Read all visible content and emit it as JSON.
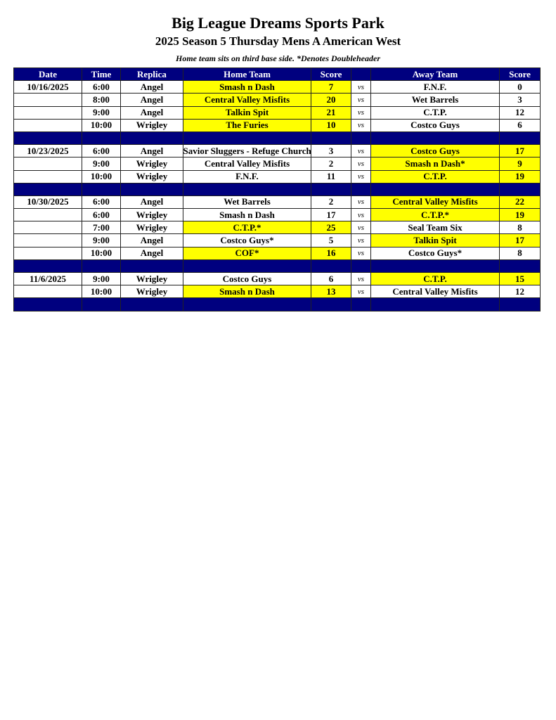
{
  "title": "Big League Dreams Sports Park",
  "subtitle": "2025 Season 5 Thursday Mens A American West",
  "note": "Home team sits on third base side.  *Denotes Doubleheader",
  "colors": {
    "header_bg": "#00007f",
    "winner_highlight": "#ffff00"
  },
  "headers": [
    "Date",
    "Time",
    "Replica",
    "Home Team",
    "Score",
    "",
    "Away Team",
    "Score"
  ],
  "vs_label": "vs",
  "rows": [
    {
      "date": "10/16/2025",
      "time": "6:00",
      "replica": "Angel",
      "home": "Smash n Dash",
      "home_score": "7",
      "away": "F.N.F.",
      "away_score": "0",
      "winner": "home"
    },
    {
      "date": "",
      "time": "8:00",
      "replica": "Angel",
      "home": "Central Valley Misfits",
      "home_score": "20",
      "away": "Wet Barrels",
      "away_score": "3",
      "winner": "home"
    },
    {
      "date": "",
      "time": "9:00",
      "replica": "Angel",
      "home": "Talkin Spit",
      "home_score": "21",
      "away": "C.T.P.",
      "away_score": "12",
      "winner": "home"
    },
    {
      "date": "",
      "time": "10:00",
      "replica": "Wrigley",
      "home": "The Furies",
      "home_score": "10",
      "away": "Costco Guys",
      "away_score": "6",
      "winner": "home"
    },
    {
      "separator": true
    },
    {
      "date": "10/23/2025",
      "time": "6:00",
      "replica": "Angel",
      "home": "Savior Sluggers - Refuge Church",
      "home_score": "3",
      "away": "Costco Guys",
      "away_score": "17",
      "winner": "away"
    },
    {
      "date": "",
      "time": "9:00",
      "replica": "Wrigley",
      "home": "Central Valley Misfits",
      "home_score": "2",
      "away": "Smash n Dash*",
      "away_score": "9",
      "winner": "away"
    },
    {
      "date": "",
      "time": "10:00",
      "replica": "Wrigley",
      "home": "F.N.F.",
      "home_score": "11",
      "away": "C.T.P.",
      "away_score": "19",
      "winner": "away"
    },
    {
      "separator": true
    },
    {
      "date": "10/30/2025",
      "time": "6:00",
      "replica": "Angel",
      "home": "Wet Barrels",
      "home_score": "2",
      "away": "Central Valley Misfits",
      "away_score": "22",
      "winner": "away"
    },
    {
      "date": "",
      "time": "6:00",
      "replica": "Wrigley",
      "home": "Smash n Dash",
      "home_score": "17",
      "away": "C.T.P.*",
      "away_score": "19",
      "winner": "away"
    },
    {
      "date": "",
      "time": "7:00",
      "replica": "Wrigley",
      "home": "C.T.P.*",
      "home_score": "25",
      "away": "Seal Team Six",
      "away_score": "8",
      "winner": "home"
    },
    {
      "date": "",
      "time": "9:00",
      "replica": "Angel",
      "home": "Costco Guys*",
      "home_score": "5",
      "away": "Talkin Spit",
      "away_score": "17",
      "winner": "away"
    },
    {
      "date": "",
      "time": "10:00",
      "replica": "Angel",
      "home": "COF*",
      "home_score": "16",
      "away": "Costco Guys*",
      "away_score": "8",
      "winner": "home"
    },
    {
      "separator": true
    },
    {
      "date": "11/6/2025",
      "time": "9:00",
      "replica": "Wrigley",
      "home": "Costco Guys",
      "home_score": "6",
      "away": "C.T.P.",
      "away_score": "15",
      "winner": "away"
    },
    {
      "date": "",
      "time": "10:00",
      "replica": "Wrigley",
      "home": "Smash n Dash",
      "home_score": "13",
      "away": "Central Valley Misfits",
      "away_score": "12",
      "winner": "home"
    },
    {
      "separator": true
    }
  ]
}
